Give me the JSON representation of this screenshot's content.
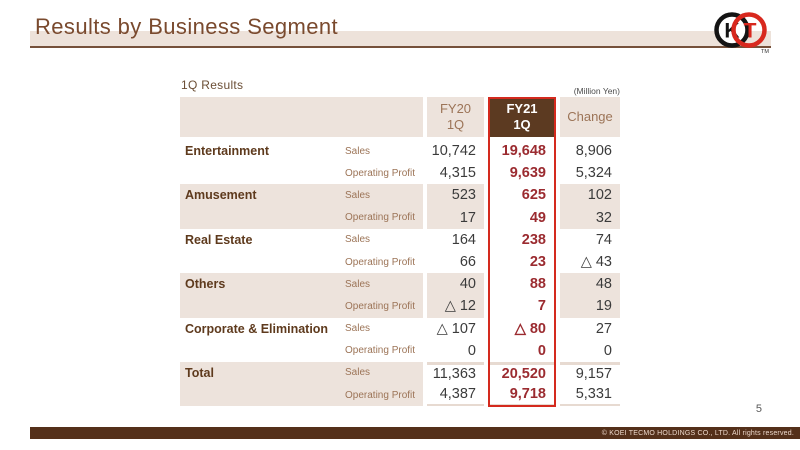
{
  "header": {
    "title": "Results by Business Segment",
    "logo": {
      "letter_k": "K",
      "letter_t": "T",
      "tm": "TM"
    }
  },
  "table": {
    "caption": "1Q Results",
    "unit": "(Million Yen)",
    "columns": {
      "fy20": "FY20\n1Q",
      "fy21": "FY21\n1Q",
      "change": "Change"
    },
    "segments": [
      {
        "name": "Entertainment",
        "rows": [
          {
            "label": "Sales",
            "fy20": "10,742",
            "fy21": "19,648",
            "change": "8,906"
          },
          {
            "label": "Operating Profit",
            "fy20": "4,315",
            "fy21": "9,639",
            "change": "5,324"
          }
        ]
      },
      {
        "name": "Amusement",
        "rows": [
          {
            "label": "Sales",
            "fy20": "523",
            "fy21": "625",
            "change": "102"
          },
          {
            "label": "Operating Profit",
            "fy20": "17",
            "fy21": "49",
            "change": "32"
          }
        ]
      },
      {
        "name": "Real Estate",
        "rows": [
          {
            "label": "Sales",
            "fy20": "164",
            "fy21": "238",
            "change": "74"
          },
          {
            "label": "Operating Profit",
            "fy20": "66",
            "fy21": "23",
            "change": "△ 43"
          }
        ]
      },
      {
        "name": "Others",
        "rows": [
          {
            "label": "Sales",
            "fy20": "40",
            "fy21": "88",
            "change": "48"
          },
          {
            "label": "Operating Profit",
            "fy20": "△ 12",
            "fy21": "7",
            "change": "19"
          }
        ]
      },
      {
        "name": "Corporate & Elimination",
        "rows": [
          {
            "label": "Sales",
            "fy20": "△ 107",
            "fy21": "△ 80",
            "change": "27"
          },
          {
            "label": "Operating Profit",
            "fy20": "0",
            "fy21": "0",
            "change": "0"
          }
        ]
      },
      {
        "name": "Total",
        "rows": [
          {
            "label": "Sales",
            "fy20": "11,363",
            "fy21": "20,520",
            "change": "9,157"
          },
          {
            "label": "Operating Profit",
            "fy20": "4,387",
            "fy21": "9,718",
            "change": "5,331"
          }
        ]
      }
    ]
  },
  "footer": {
    "page_number": "5",
    "copyright": "© KOEI TECMO HOLDINGS CO., LTD. All rights reserved."
  },
  "colors": {
    "accent_red": "#D42A1E",
    "highlight_maroon": "#9B2B30",
    "header_brown": "#5C3A21",
    "beige": "#EDE3DC",
    "footer_brown": "#54301A",
    "title_brown": "#7A4A2E",
    "logo_black": "#141414",
    "logo_red": "#D8281E"
  }
}
